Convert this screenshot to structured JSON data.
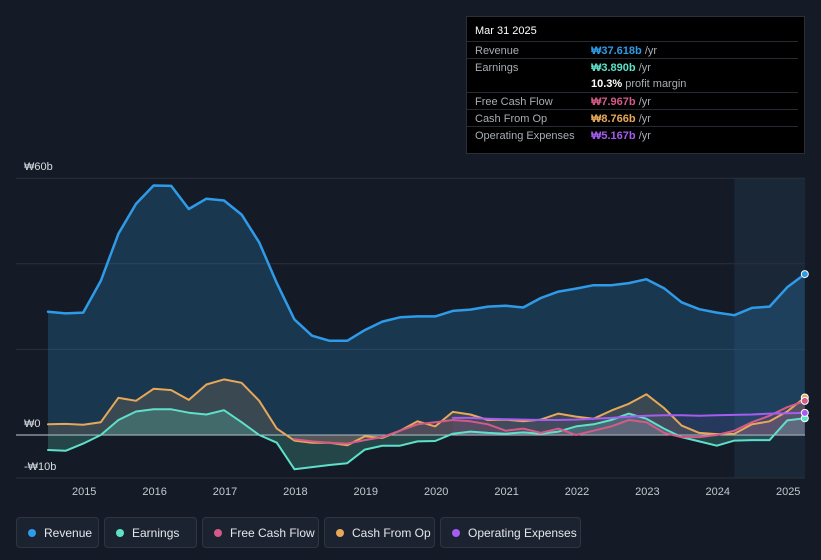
{
  "tooltip": {
    "date": "Mar 31 2025",
    "rows": [
      {
        "label": "Revenue",
        "value": "₩37.618b",
        "unit": "/yr",
        "color": "#2f9be8"
      },
      {
        "label": "Earnings",
        "value": "₩3.890b",
        "unit": "/yr",
        "color": "#5ee0c9"
      },
      {
        "label": "",
        "value": "10.3%",
        "unit": "profit margin",
        "color": "#ffffff"
      },
      {
        "label": "Free Cash Flow",
        "value": "₩7.967b",
        "unit": "/yr",
        "color": "#d45a8a"
      },
      {
        "label": "Cash From Op",
        "value": "₩8.766b",
        "unit": "/yr",
        "color": "#e8a85a"
      },
      {
        "label": "Operating Expenses",
        "value": "₩5.167b",
        "unit": "/yr",
        "color": "#a55cf0"
      }
    ]
  },
  "legend": [
    {
      "label": "Revenue",
      "color": "#2f9be8"
    },
    {
      "label": "Earnings",
      "color": "#5ee0c9"
    },
    {
      "label": "Free Cash Flow",
      "color": "#d45a8a"
    },
    {
      "label": "Cash From Op",
      "color": "#e8a85a"
    },
    {
      "label": "Operating Expenses",
      "color": "#a55cf0"
    }
  ],
  "chart_data": {
    "type": "area",
    "title": "",
    "xlabel": "",
    "ylabel": "",
    "unit": "KRW billions",
    "ylim": [
      -10,
      60
    ],
    "y_ticks": [
      {
        "value": 60,
        "label": "₩60b"
      },
      {
        "value": 0,
        "label": "₩0"
      },
      {
        "value": -10,
        "label": "-₩10b"
      }
    ],
    "xlim": [
      2014.5,
      2025.25
    ],
    "x_ticks": [
      "2015",
      "2016",
      "2017",
      "2018",
      "2019",
      "2020",
      "2021",
      "2022",
      "2023",
      "2024",
      "2025"
    ],
    "forecast_start": 2024.25,
    "series": [
      {
        "name": "Revenue",
        "color": "#2f9be8",
        "points": [
          [
            2014.5,
            28.8
          ],
          [
            2014.75,
            28.4
          ],
          [
            2015.0,
            28.6
          ],
          [
            2015.25,
            36
          ],
          [
            2015.5,
            47
          ],
          [
            2015.75,
            54
          ],
          [
            2016.0,
            58.3
          ],
          [
            2016.25,
            58.2
          ],
          [
            2016.5,
            52.8
          ],
          [
            2016.75,
            55.2
          ],
          [
            2017.0,
            54.8
          ],
          [
            2017.25,
            51.5
          ],
          [
            2017.5,
            45
          ],
          [
            2017.75,
            35.5
          ],
          [
            2018.0,
            27
          ],
          [
            2018.25,
            23.2
          ],
          [
            2018.5,
            22
          ],
          [
            2018.75,
            22
          ],
          [
            2019.0,
            24.5
          ],
          [
            2019.25,
            26.5
          ],
          [
            2019.5,
            27.5
          ],
          [
            2019.75,
            27.7
          ],
          [
            2020.0,
            27.7
          ],
          [
            2020.25,
            29
          ],
          [
            2020.5,
            29.3
          ],
          [
            2020.75,
            30
          ],
          [
            2021.0,
            30.2
          ],
          [
            2021.25,
            29.8
          ],
          [
            2021.5,
            32
          ],
          [
            2021.75,
            33.5
          ],
          [
            2022.0,
            34.2
          ],
          [
            2022.25,
            35
          ],
          [
            2022.5,
            35
          ],
          [
            2022.75,
            35.5
          ],
          [
            2023.0,
            36.4
          ],
          [
            2023.25,
            34.3
          ],
          [
            2023.5,
            31
          ],
          [
            2023.75,
            29.4
          ],
          [
            2024.0,
            28.6
          ],
          [
            2024.25,
            28
          ],
          [
            2024.5,
            29.7
          ],
          [
            2024.75,
            30
          ],
          [
            2025.0,
            34.5
          ],
          [
            2025.25,
            37.6
          ]
        ]
      },
      {
        "name": "Earnings",
        "color": "#5ee0c9",
        "points": [
          [
            2014.5,
            -3.5
          ],
          [
            2014.75,
            -3.7
          ],
          [
            2015.0,
            -2
          ],
          [
            2015.25,
            0
          ],
          [
            2015.5,
            3.5
          ],
          [
            2015.75,
            5.5
          ],
          [
            2016.0,
            6
          ],
          [
            2016.25,
            6
          ],
          [
            2016.5,
            5.2
          ],
          [
            2016.75,
            4.8
          ],
          [
            2017.0,
            5.8
          ],
          [
            2017.25,
            3
          ],
          [
            2017.5,
            0
          ],
          [
            2017.75,
            -1.8
          ],
          [
            2018.0,
            -8
          ],
          [
            2018.25,
            -7.5
          ],
          [
            2018.5,
            -7
          ],
          [
            2018.75,
            -6.6
          ],
          [
            2019.0,
            -3.4
          ],
          [
            2019.25,
            -2.5
          ],
          [
            2019.5,
            -2.5
          ],
          [
            2019.75,
            -1.5
          ],
          [
            2020.0,
            -1.4
          ],
          [
            2020.25,
            0.3
          ],
          [
            2020.5,
            0.8
          ],
          [
            2020.75,
            0.5
          ],
          [
            2021.0,
            0.3
          ],
          [
            2021.25,
            0.6
          ],
          [
            2021.5,
            0.3
          ],
          [
            2021.75,
            0.8
          ],
          [
            2022.0,
            2
          ],
          [
            2022.25,
            2.5
          ],
          [
            2022.5,
            3.5
          ],
          [
            2022.75,
            5
          ],
          [
            2023.0,
            3.8
          ],
          [
            2023.25,
            1.5
          ],
          [
            2023.5,
            -0.5
          ],
          [
            2023.75,
            -1.5
          ],
          [
            2024.0,
            -2.5
          ],
          [
            2024.25,
            -1.3
          ],
          [
            2024.5,
            -1.2
          ],
          [
            2024.75,
            -1.2
          ],
          [
            2025.0,
            3.4
          ],
          [
            2025.25,
            3.9
          ]
        ]
      },
      {
        "name": "Free Cash Flow",
        "color": "#d45a8a",
        "points": [
          [
            2018.0,
            -1
          ],
          [
            2018.25,
            -1.5
          ],
          [
            2018.5,
            -1.8
          ],
          [
            2018.75,
            -2
          ],
          [
            2019.0,
            -1.2
          ],
          [
            2019.25,
            -0.5
          ],
          [
            2019.5,
            1
          ],
          [
            2019.75,
            2.5
          ],
          [
            2020.0,
            3
          ],
          [
            2020.25,
            3.5
          ],
          [
            2020.5,
            3.2
          ],
          [
            2020.75,
            2.5
          ],
          [
            2021.0,
            1
          ],
          [
            2021.25,
            1.5
          ],
          [
            2021.5,
            0.5
          ],
          [
            2021.75,
            1.5
          ],
          [
            2022.0,
            0
          ],
          [
            2022.25,
            1
          ],
          [
            2022.5,
            2
          ],
          [
            2022.75,
            3.5
          ],
          [
            2023.0,
            3
          ],
          [
            2023.25,
            0.5
          ],
          [
            2023.5,
            -0.5
          ],
          [
            2023.75,
            -0.5
          ],
          [
            2024.0,
            0
          ],
          [
            2024.25,
            1
          ],
          [
            2024.5,
            3
          ],
          [
            2024.75,
            4.5
          ],
          [
            2025.0,
            6.5
          ],
          [
            2025.25,
            7.97
          ]
        ]
      },
      {
        "name": "Cash From Op",
        "color": "#e8a85a",
        "points": [
          [
            2014.5,
            2.5
          ],
          [
            2014.75,
            2.6
          ],
          [
            2015.0,
            2.4
          ],
          [
            2015.25,
            3
          ],
          [
            2015.5,
            8.7
          ],
          [
            2015.75,
            8
          ],
          [
            2016.0,
            10.8
          ],
          [
            2016.25,
            10.5
          ],
          [
            2016.5,
            8.2
          ],
          [
            2016.75,
            11.8
          ],
          [
            2017.0,
            13
          ],
          [
            2017.25,
            12.2
          ],
          [
            2017.5,
            8
          ],
          [
            2017.75,
            1.5
          ],
          [
            2018.0,
            -1.3
          ],
          [
            2018.25,
            -1.8
          ],
          [
            2018.5,
            -1.8
          ],
          [
            2018.75,
            -2.4
          ],
          [
            2019.0,
            -0.3
          ],
          [
            2019.25,
            -0.7
          ],
          [
            2019.5,
            1
          ],
          [
            2019.75,
            3.2
          ],
          [
            2020.0,
            2
          ],
          [
            2020.25,
            5.4
          ],
          [
            2020.5,
            4.8
          ],
          [
            2020.75,
            3.5
          ],
          [
            2021.0,
            3.6
          ],
          [
            2021.25,
            3.2
          ],
          [
            2021.5,
            3.6
          ],
          [
            2021.75,
            5
          ],
          [
            2022.0,
            4.3
          ],
          [
            2022.25,
            3.8
          ],
          [
            2022.5,
            5.7
          ],
          [
            2022.75,
            7.3
          ],
          [
            2023.0,
            9.5
          ],
          [
            2023.25,
            6.3
          ],
          [
            2023.5,
            2.2
          ],
          [
            2023.75,
            0.5
          ],
          [
            2024.0,
            0.2
          ],
          [
            2024.25,
            0.3
          ],
          [
            2024.5,
            2.5
          ],
          [
            2024.75,
            3.2
          ],
          [
            2025.0,
            5.5
          ],
          [
            2025.25,
            8.77
          ]
        ]
      },
      {
        "name": "Operating Expenses",
        "color": "#a55cf0",
        "points": [
          [
            2020.25,
            4
          ],
          [
            2020.5,
            4
          ],
          [
            2020.75,
            3.8
          ],
          [
            2021.0,
            3.7
          ],
          [
            2021.25,
            3.6
          ],
          [
            2021.5,
            3.5
          ],
          [
            2021.75,
            3.5
          ],
          [
            2022.0,
            3.6
          ],
          [
            2022.25,
            3.8
          ],
          [
            2022.5,
            4
          ],
          [
            2022.75,
            4.3
          ],
          [
            2023.0,
            4.5
          ],
          [
            2023.25,
            4.6
          ],
          [
            2023.5,
            4.6
          ],
          [
            2023.75,
            4.5
          ],
          [
            2024.0,
            4.6
          ],
          [
            2024.25,
            4.7
          ],
          [
            2024.5,
            4.8
          ],
          [
            2024.75,
            5
          ],
          [
            2025.0,
            5.1
          ],
          [
            2025.25,
            5.17
          ]
        ]
      }
    ]
  }
}
